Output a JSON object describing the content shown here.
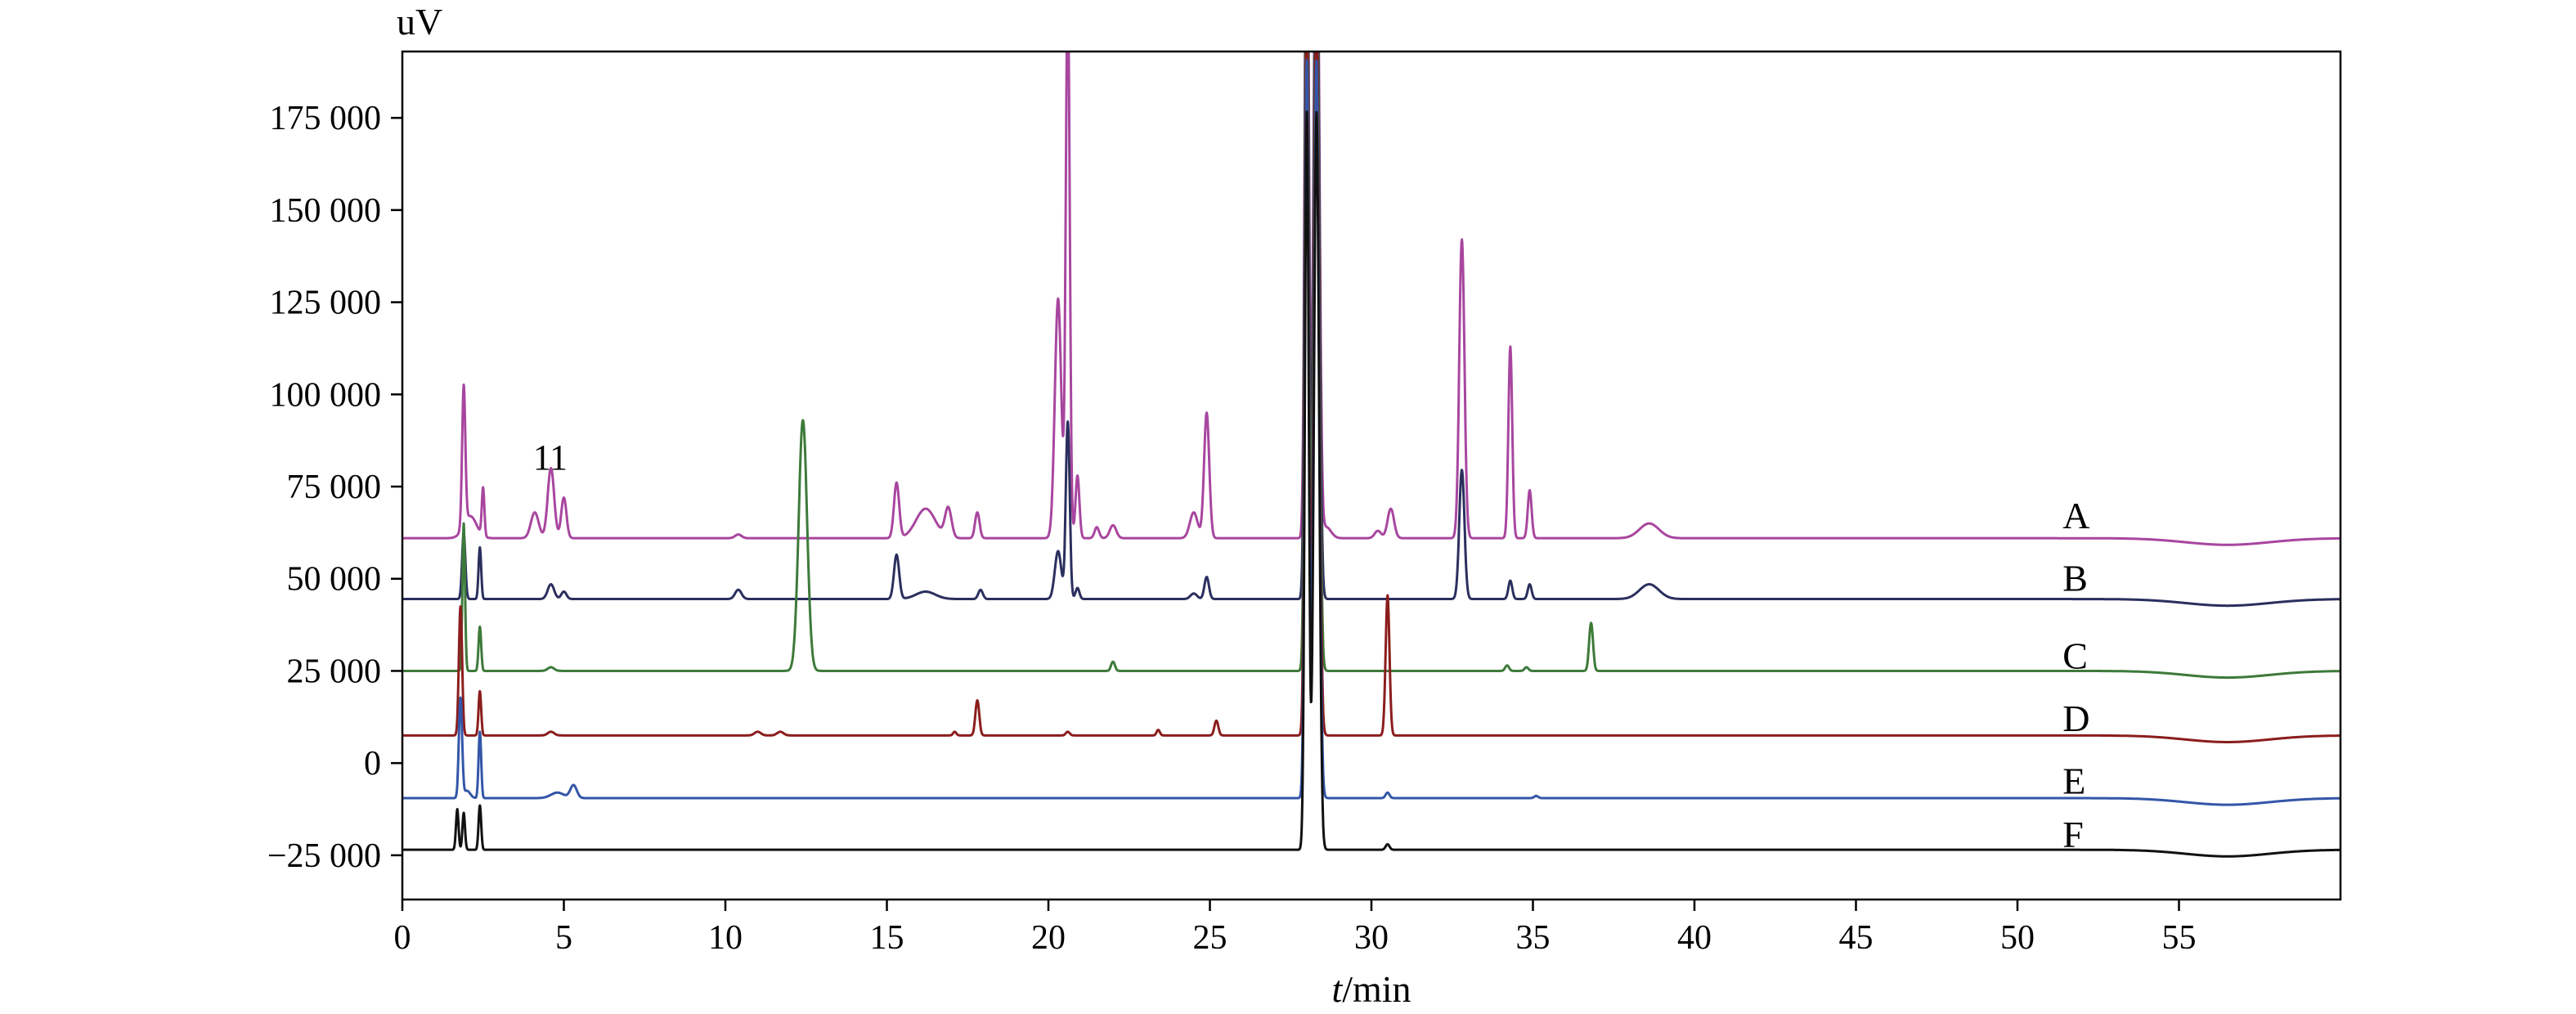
{
  "chart_data": {
    "type": "line",
    "title": "",
    "ylabel": "uV",
    "xlabel_italic": "t",
    "xlabel_unit": "/min",
    "xlim": [
      0,
      60
    ],
    "ylim": [
      -37000,
      193000
    ],
    "xticks": [
      0,
      5,
      10,
      15,
      20,
      25,
      30,
      35,
      40,
      45,
      50,
      55
    ],
    "yticks": [
      {
        "value": -25000,
        "label": "−25 000"
      },
      {
        "value": 0,
        "label": "0"
      },
      {
        "value": 25000,
        "label": "25 000"
      },
      {
        "value": 50000,
        "label": "50 000"
      },
      {
        "value": 75000,
        "label": "75 000"
      },
      {
        "value": 100000,
        "label": "100 000"
      },
      {
        "value": 125000,
        "label": "125 000"
      },
      {
        "value": 150000,
        "label": "150 000"
      },
      {
        "value": 175000,
        "label": "175 000"
      }
    ],
    "grid": false,
    "annotations": [
      {
        "text": "11",
        "x": 4.6,
        "y": 83000
      }
    ],
    "series": [
      {
        "name": "A",
        "color": "#a8469f",
        "baseline": 61000,
        "label_x": 51.4,
        "label_y": 67000,
        "peaks": [
          [
            1.9,
            38000,
            0.05
          ],
          [
            2.1,
            6000,
            0.2
          ],
          [
            2.5,
            13000,
            0.04
          ],
          [
            4.1,
            7000,
            0.12
          ],
          [
            4.6,
            19000,
            0.1
          ],
          [
            5.0,
            11000,
            0.08
          ],
          [
            10.4,
            1000,
            0.1
          ],
          [
            15.3,
            15000,
            0.08
          ],
          [
            16.2,
            8000,
            0.3
          ],
          [
            16.9,
            8000,
            0.1
          ],
          [
            17.8,
            7000,
            0.07
          ],
          [
            20.3,
            65000,
            0.1
          ],
          [
            20.6,
            150000,
            0.06
          ],
          [
            20.9,
            17000,
            0.06
          ],
          [
            21.5,
            3000,
            0.07
          ],
          [
            22.0,
            3500,
            0.1
          ],
          [
            24.5,
            7000,
            0.12
          ],
          [
            24.9,
            34000,
            0.08
          ],
          [
            28.0,
            200000,
            0.06
          ],
          [
            28.3,
            200000,
            0.08
          ],
          [
            28.6,
            3000,
            0.15
          ],
          [
            30.2,
            2000,
            0.1
          ],
          [
            30.6,
            8000,
            0.1
          ],
          [
            32.8,
            81000,
            0.08
          ],
          [
            34.3,
            52000,
            0.06
          ],
          [
            34.9,
            13000,
            0.06
          ],
          [
            38.6,
            4000,
            0.3
          ]
        ]
      },
      {
        "name": "B",
        "color": "#2b2f5e",
        "baseline": 44500,
        "label_x": 51.4,
        "label_y": 50000,
        "peaks": [
          [
            1.9,
            18000,
            0.05
          ],
          [
            2.4,
            14000,
            0.04
          ],
          [
            4.6,
            4000,
            0.1
          ],
          [
            5.0,
            2000,
            0.08
          ],
          [
            10.4,
            2500,
            0.1
          ],
          [
            15.3,
            12000,
            0.08
          ],
          [
            16.2,
            2000,
            0.3
          ],
          [
            17.9,
            2500,
            0.07
          ],
          [
            20.3,
            13000,
            0.1
          ],
          [
            20.6,
            48000,
            0.06
          ],
          [
            20.9,
            3000,
            0.06
          ],
          [
            24.5,
            1500,
            0.1
          ],
          [
            24.9,
            6000,
            0.07
          ],
          [
            28.0,
            200000,
            0.06
          ],
          [
            28.3,
            200000,
            0.08
          ],
          [
            32.8,
            35000,
            0.08
          ],
          [
            34.3,
            5000,
            0.06
          ],
          [
            34.9,
            4000,
            0.06
          ],
          [
            38.6,
            4000,
            0.3
          ]
        ]
      },
      {
        "name": "C",
        "color": "#3d7a3a",
        "baseline": 25000,
        "label_x": 51.4,
        "label_y": 29000,
        "peaks": [
          [
            1.9,
            40000,
            0.04
          ],
          [
            2.4,
            12000,
            0.04
          ],
          [
            4.6,
            1000,
            0.1
          ],
          [
            12.4,
            68000,
            0.13
          ],
          [
            22.0,
            2500,
            0.06
          ],
          [
            28.0,
            200000,
            0.06
          ],
          [
            28.3,
            200000,
            0.08
          ],
          [
            34.2,
            1500,
            0.06
          ],
          [
            34.8,
            1000,
            0.06
          ],
          [
            36.8,
            13000,
            0.06
          ]
        ]
      },
      {
        "name": "D",
        "color": "#8b1d1d",
        "baseline": 7500,
        "label_x": 51.4,
        "label_y": 12000,
        "peaks": [
          [
            1.8,
            35000,
            0.05
          ],
          [
            2.4,
            12000,
            0.04
          ],
          [
            4.6,
            1000,
            0.1
          ],
          [
            11.0,
            1000,
            0.1
          ],
          [
            11.7,
            1000,
            0.1
          ],
          [
            17.1,
            1000,
            0.05
          ],
          [
            17.8,
            9500,
            0.06
          ],
          [
            20.6,
            1000,
            0.06
          ],
          [
            23.4,
            1500,
            0.05
          ],
          [
            25.2,
            4000,
            0.06
          ],
          [
            28.0,
            200000,
            0.06
          ],
          [
            28.3,
            200000,
            0.08
          ],
          [
            30.5,
            38000,
            0.06
          ]
        ]
      },
      {
        "name": "E",
        "color": "#3356a8",
        "baseline": -9500,
        "label_x": 51.4,
        "label_y": -5000,
        "peaks": [
          [
            1.8,
            27000,
            0.05
          ],
          [
            2.0,
            2000,
            0.1
          ],
          [
            2.4,
            18000,
            0.04
          ],
          [
            4.8,
            1500,
            0.2
          ],
          [
            5.3,
            3500,
            0.1
          ],
          [
            28.0,
            200000,
            0.06
          ],
          [
            28.3,
            200000,
            0.08
          ],
          [
            30.5,
            1500,
            0.06
          ],
          [
            35.1,
            600,
            0.06
          ]
        ]
      },
      {
        "name": "F",
        "color": "#111111",
        "baseline": -23500,
        "label_x": 51.4,
        "label_y": -19500,
        "peaks": [
          [
            1.7,
            11000,
            0.04
          ],
          [
            1.9,
            10000,
            0.04
          ],
          [
            2.4,
            12000,
            0.04
          ],
          [
            28.0,
            200000,
            0.06
          ],
          [
            28.3,
            200000,
            0.08
          ],
          [
            30.5,
            1500,
            0.06
          ]
        ]
      }
    ]
  }
}
